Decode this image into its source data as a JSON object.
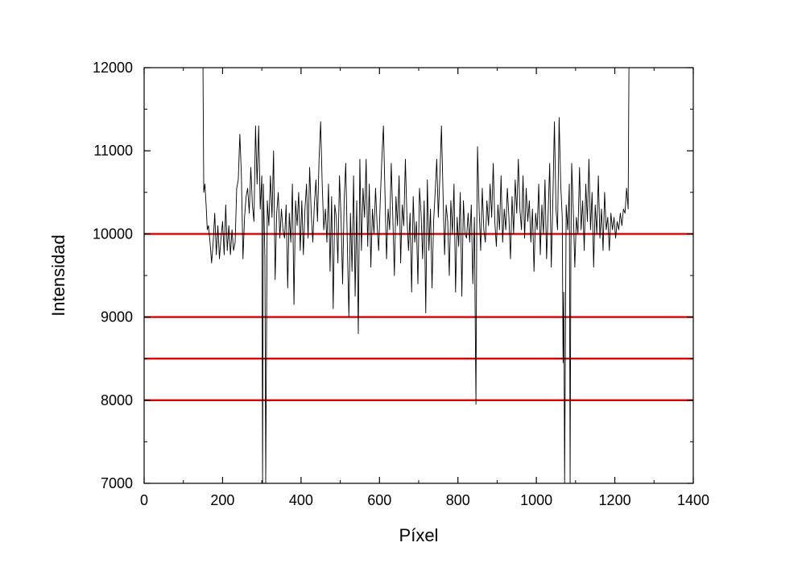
{
  "chart_data": {
    "type": "line",
    "title": "",
    "xlabel": "Píxel",
    "ylabel": "Intensidad",
    "xlim": [
      0,
      1400
    ],
    "ylim": [
      7000,
      12000
    ],
    "x_ticks": [
      0,
      200,
      400,
      600,
      800,
      1000,
      1200,
      1400
    ],
    "y_ticks": [
      7000,
      8000,
      9000,
      10000,
      11000,
      12000
    ],
    "x_tick_labels": [
      "0",
      "200",
      "400",
      "600",
      "800",
      "1000",
      "1200",
      "1400"
    ],
    "y_tick_labels": [
      "7000",
      "8000",
      "9000",
      "10000",
      "11000",
      "12000"
    ],
    "grid": false,
    "series": [
      {
        "color": "#000000",
        "points": [
          [
            150,
            12000
          ],
          [
            152,
            10500
          ],
          [
            155,
            10600
          ],
          [
            158,
            10350
          ],
          [
            161,
            10050
          ],
          [
            164,
            10100
          ],
          [
            168,
            9900
          ],
          [
            172,
            9650
          ],
          [
            176,
            9900
          ],
          [
            180,
            10250
          ],
          [
            184,
            9750
          ],
          [
            188,
            10100
          ],
          [
            192,
            9700
          ],
          [
            196,
            9950
          ],
          [
            200,
            10150
          ],
          [
            204,
            9750
          ],
          [
            208,
            10350
          ],
          [
            212,
            9800
          ],
          [
            216,
            10100
          ],
          [
            220,
            9750
          ],
          [
            224,
            10050
          ],
          [
            228,
            9800
          ],
          [
            232,
            9900
          ],
          [
            236,
            10550
          ],
          [
            240,
            10650
          ],
          [
            244,
            11200
          ],
          [
            248,
            10700
          ],
          [
            252,
            9700
          ],
          [
            256,
            10200
          ],
          [
            260,
            10450
          ],
          [
            264,
            10550
          ],
          [
            268,
            10250
          ],
          [
            272,
            10800
          ],
          [
            276,
            10350
          ],
          [
            280,
            10150
          ],
          [
            284,
            11300
          ],
          [
            288,
            10600
          ],
          [
            292,
            11300
          ],
          [
            296,
            10300
          ],
          [
            300,
            10700
          ],
          [
            302,
            7000
          ],
          [
            304,
            10600
          ],
          [
            308,
            9700
          ],
          [
            310,
            7000
          ],
          [
            314,
            10400
          ],
          [
            318,
            10100
          ],
          [
            322,
            10700
          ],
          [
            326,
            10200
          ],
          [
            330,
            11000
          ],
          [
            334,
            9450
          ],
          [
            338,
            10250
          ],
          [
            342,
            10500
          ],
          [
            346,
            9950
          ],
          [
            350,
            10300
          ],
          [
            354,
            10050
          ],
          [
            358,
            9950
          ],
          [
            362,
            10350
          ],
          [
            366,
            9350
          ],
          [
            370,
            10250
          ],
          [
            374,
            9900
          ],
          [
            378,
            10600
          ],
          [
            382,
            9150
          ],
          [
            386,
            10400
          ],
          [
            390,
            10100
          ],
          [
            394,
            10500
          ],
          [
            398,
            9800
          ],
          [
            402,
            10400
          ],
          [
            406,
            9750
          ],
          [
            410,
            10300
          ],
          [
            414,
            10600
          ],
          [
            418,
            9950
          ],
          [
            422,
            10800
          ],
          [
            426,
            10250
          ],
          [
            430,
            9900
          ],
          [
            434,
            10350
          ],
          [
            438,
            10650
          ],
          [
            442,
            10150
          ],
          [
            446,
            10900
          ],
          [
            450,
            11350
          ],
          [
            454,
            10600
          ],
          [
            458,
            10050
          ],
          [
            462,
            10300
          ],
          [
            466,
            9900
          ],
          [
            470,
            10600
          ],
          [
            474,
            9550
          ],
          [
            478,
            10450
          ],
          [
            482,
            9100
          ],
          [
            486,
            10350
          ],
          [
            490,
            10200
          ],
          [
            494,
            9650
          ],
          [
            498,
            10700
          ],
          [
            502,
            10200
          ],
          [
            506,
            9400
          ],
          [
            510,
            10400
          ],
          [
            514,
            10850
          ],
          [
            518,
            9900
          ],
          [
            522,
            9000
          ],
          [
            526,
            10250
          ],
          [
            530,
            9550
          ],
          [
            534,
            10700
          ],
          [
            538,
            9250
          ],
          [
            542,
            10400
          ],
          [
            546,
            8800
          ],
          [
            550,
            10900
          ],
          [
            554,
            9800
          ],
          [
            558,
            10550
          ],
          [
            562,
            10200
          ],
          [
            566,
            10900
          ],
          [
            570,
            9850
          ],
          [
            574,
            10600
          ],
          [
            578,
            9600
          ],
          [
            582,
            10300
          ],
          [
            586,
            10000
          ],
          [
            590,
            10550
          ],
          [
            594,
            10100
          ],
          [
            598,
            9800
          ],
          [
            602,
            10400
          ],
          [
            606,
            10900
          ],
          [
            610,
            11300
          ],
          [
            614,
            10500
          ],
          [
            618,
            9700
          ],
          [
            622,
            10300
          ],
          [
            626,
            10050
          ],
          [
            630,
            10850
          ],
          [
            634,
            10200
          ],
          [
            638,
            9500
          ],
          [
            642,
            10450
          ],
          [
            646,
            10100
          ],
          [
            650,
            10700
          ],
          [
            654,
            9650
          ],
          [
            658,
            10350
          ],
          [
            662,
            10100
          ],
          [
            666,
            10900
          ],
          [
            670,
            10200
          ],
          [
            674,
            9800
          ],
          [
            678,
            10250
          ],
          [
            682,
            9300
          ],
          [
            686,
            10450
          ],
          [
            690,
            9900
          ],
          [
            694,
            10150
          ],
          [
            698,
            9400
          ],
          [
            702,
            10550
          ],
          [
            706,
            10250
          ],
          [
            710,
            9700
          ],
          [
            714,
            10400
          ],
          [
            718,
            9050
          ],
          [
            722,
            10650
          ],
          [
            726,
            9800
          ],
          [
            730,
            10300
          ],
          [
            734,
            9350
          ],
          [
            738,
            10150
          ],
          [
            742,
            10500
          ],
          [
            746,
            10900
          ],
          [
            750,
            10200
          ],
          [
            754,
            10700
          ],
          [
            758,
            11300
          ],
          [
            762,
            10500
          ],
          [
            766,
            9750
          ],
          [
            770,
            10350
          ],
          [
            774,
            10150
          ],
          [
            778,
            9500
          ],
          [
            782,
            10400
          ],
          [
            786,
            10000
          ],
          [
            790,
            10600
          ],
          [
            794,
            9300
          ],
          [
            798,
            10200
          ],
          [
            802,
            9850
          ],
          [
            806,
            10500
          ],
          [
            810,
            9250
          ],
          [
            814,
            10400
          ],
          [
            818,
            10000
          ],
          [
            822,
            9950
          ],
          [
            826,
            10250
          ],
          [
            830,
            9900
          ],
          [
            834,
            10350
          ],
          [
            838,
            9400
          ],
          [
            842,
            10200
          ],
          [
            844,
            9000
          ],
          [
            846,
            7950
          ],
          [
            848,
            10100
          ],
          [
            850,
            11050
          ],
          [
            854,
            10300
          ],
          [
            858,
            9800
          ],
          [
            862,
            10550
          ],
          [
            866,
            10050
          ],
          [
            870,
            9900
          ],
          [
            874,
            10400
          ],
          [
            878,
            10100
          ],
          [
            882,
            10600
          ],
          [
            886,
            10200
          ],
          [
            890,
            10850
          ],
          [
            894,
            10150
          ],
          [
            898,
            9850
          ],
          [
            902,
            10350
          ],
          [
            906,
            10050
          ],
          [
            910,
            10700
          ],
          [
            914,
            9900
          ],
          [
            918,
            10300
          ],
          [
            922,
            10050
          ],
          [
            926,
            10550
          ],
          [
            930,
            10200
          ],
          [
            934,
            9700
          ],
          [
            938,
            10450
          ],
          [
            942,
            10000
          ],
          [
            946,
            10650
          ],
          [
            950,
            10250
          ],
          [
            954,
            10900
          ],
          [
            958,
            10300
          ],
          [
            962,
            10050
          ],
          [
            966,
            10700
          ],
          [
            970,
            9950
          ],
          [
            974,
            10550
          ],
          [
            978,
            10150
          ],
          [
            982,
            10400
          ],
          [
            986,
            9900
          ],
          [
            990,
            10300
          ],
          [
            994,
            9550
          ],
          [
            998,
            10250
          ],
          [
            1002,
            10050
          ],
          [
            1006,
            10600
          ],
          [
            1010,
            9750
          ],
          [
            1014,
            10350
          ],
          [
            1018,
            10000
          ],
          [
            1022,
            10650
          ],
          [
            1026,
            9700
          ],
          [
            1030,
            10250
          ],
          [
            1034,
            10850
          ],
          [
            1038,
            9600
          ],
          [
            1042,
            10400
          ],
          [
            1046,
            11350
          ],
          [
            1050,
            10300
          ],
          [
            1054,
            10050
          ],
          [
            1058,
            11400
          ],
          [
            1062,
            10600
          ],
          [
            1066,
            10200
          ],
          [
            1068,
            8450
          ],
          [
            1070,
            9300
          ],
          [
            1072,
            7000
          ],
          [
            1076,
            10350
          ],
          [
            1080,
            10050
          ],
          [
            1084,
            10600
          ],
          [
            1086,
            7000
          ],
          [
            1088,
            9800
          ],
          [
            1090,
            10850
          ],
          [
            1094,
            10300
          ],
          [
            1098,
            9600
          ],
          [
            1102,
            10200
          ],
          [
            1106,
            10000
          ],
          [
            1110,
            10800
          ],
          [
            1114,
            10050
          ],
          [
            1118,
            10400
          ],
          [
            1122,
            9800
          ],
          [
            1126,
            10600
          ],
          [
            1130,
            10150
          ],
          [
            1134,
            10900
          ],
          [
            1138,
            10050
          ],
          [
            1142,
            10500
          ],
          [
            1146,
            9600
          ],
          [
            1150,
            10350
          ],
          [
            1154,
            10000
          ],
          [
            1158,
            10700
          ],
          [
            1162,
            9950
          ],
          [
            1166,
            10300
          ],
          [
            1170,
            9800
          ],
          [
            1174,
            10500
          ],
          [
            1178,
            10050
          ],
          [
            1182,
            10200
          ],
          [
            1186,
            9800
          ],
          [
            1190,
            10250
          ],
          [
            1194,
            10050
          ],
          [
            1198,
            10200
          ],
          [
            1202,
            9950
          ],
          [
            1206,
            10150
          ],
          [
            1210,
            10050
          ],
          [
            1214,
            10250
          ],
          [
            1218,
            10100
          ],
          [
            1222,
            10300
          ],
          [
            1226,
            10250
          ],
          [
            1230,
            10550
          ],
          [
            1234,
            10300
          ],
          [
            1236,
            12000
          ]
        ]
      }
    ],
    "reference_lines": [
      {
        "y": 10000,
        "color": "#dd0000"
      },
      {
        "y": 9000,
        "color": "#dd0000"
      },
      {
        "y": 8500,
        "color": "#dd0000"
      },
      {
        "y": 8000,
        "color": "#dd0000"
      }
    ]
  }
}
